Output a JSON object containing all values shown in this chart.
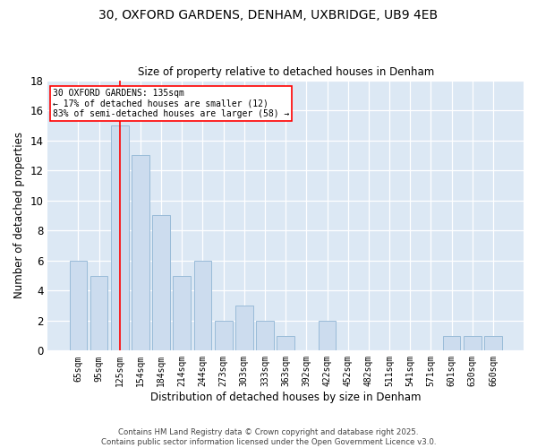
{
  "title1": "30, OXFORD GARDENS, DENHAM, UXBRIDGE, UB9 4EB",
  "title2": "Size of property relative to detached houses in Denham",
  "xlabel": "Distribution of detached houses by size in Denham",
  "ylabel": "Number of detached properties",
  "categories": [
    "65sqm",
    "95sqm",
    "125sqm",
    "154sqm",
    "184sqm",
    "214sqm",
    "244sqm",
    "273sqm",
    "303sqm",
    "333sqm",
    "363sqm",
    "392sqm",
    "422sqm",
    "452sqm",
    "482sqm",
    "511sqm",
    "541sqm",
    "571sqm",
    "601sqm",
    "630sqm",
    "660sqm"
  ],
  "values": [
    6,
    5,
    15,
    13,
    9,
    5,
    6,
    2,
    3,
    2,
    1,
    0,
    2,
    0,
    0,
    0,
    0,
    0,
    1,
    1,
    1
  ],
  "bar_color": "#ccdcee",
  "bar_edgecolor": "#99bbd8",
  "redline_x": 2.0,
  "annotation_text": "30 OXFORD GARDENS: 135sqm\n← 17% of detached houses are smaller (12)\n83% of semi-detached houses are larger (58) →",
  "annotation_boxcolor": "white",
  "annotation_edgecolor": "red",
  "redline_color": "red",
  "ylim": [
    0,
    18
  ],
  "yticks": [
    0,
    2,
    4,
    6,
    8,
    10,
    12,
    14,
    16,
    18
  ],
  "background_color": "#dce8f4",
  "grid_color": "white",
  "footer1": "Contains HM Land Registry data © Crown copyright and database right 2025.",
  "footer2": "Contains public sector information licensed under the Open Government Licence v3.0."
}
